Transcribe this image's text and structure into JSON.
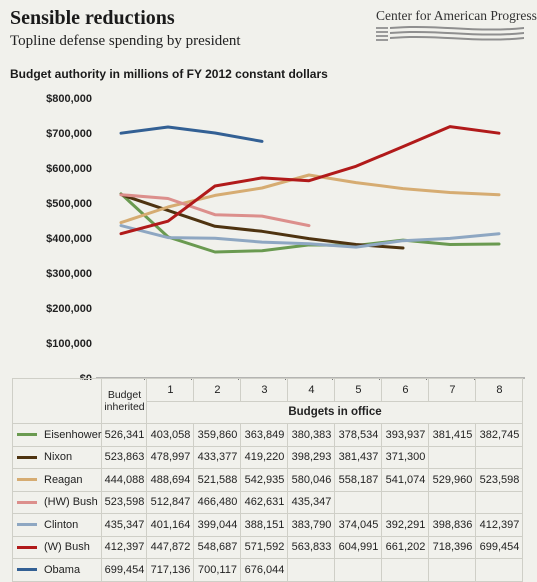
{
  "header": {
    "title": "Sensible reductions",
    "subtitle": "Topline defense spending by president",
    "logo_text": "Center for American Progress"
  },
  "chart_data": {
    "type": "line",
    "title": "Sensible reductions",
    "subtitle": "Topline defense spending by president",
    "ylabel": "Budget authority in millions of FY 2012 constant dollars",
    "xlabel": "Budgets in office",
    "categories": [
      "Budget inherited",
      "1",
      "2",
      "3",
      "4",
      "5",
      "6",
      "7",
      "8"
    ],
    "ylim": [
      0,
      800000
    ],
    "yticks": [
      "$0",
      "$100,000",
      "$200,000",
      "$300,000",
      "$400,000",
      "$500,000",
      "$600,000",
      "$700,000",
      "$800,000"
    ],
    "grid": false,
    "legend": "table",
    "series": [
      {
        "name": "Eisenhower",
        "color": "#6a9a50",
        "values": [
          526341,
          403058,
          359860,
          363849,
          380383,
          378534,
          393937,
          381415,
          382745
        ]
      },
      {
        "name": "Nixon",
        "color": "#4e3310",
        "values": [
          523863,
          478997,
          433377,
          419220,
          398293,
          381437,
          371300,
          null,
          null
        ]
      },
      {
        "name": "Reagan",
        "color": "#d6ac72",
        "values": [
          444088,
          488694,
          521588,
          542935,
          580046,
          558187,
          541074,
          529960,
          523598
        ]
      },
      {
        "name": "(HW) Bush",
        "color": "#dc8f8c",
        "values": [
          523598,
          512847,
          466480,
          462631,
          435347,
          null,
          null,
          null,
          null
        ]
      },
      {
        "name": "Clinton",
        "color": "#8ea7c2",
        "values": [
          435347,
          401164,
          399044,
          388151,
          383790,
          374045,
          392291,
          398836,
          412397
        ]
      },
      {
        "name": "(W) Bush",
        "color": "#b11a1a",
        "values": [
          412397,
          447872,
          548687,
          571592,
          563833,
          604991,
          661202,
          718396,
          699454
        ]
      },
      {
        "name": "Obama",
        "color": "#336094",
        "values": [
          699454,
          717136,
          700117,
          676044,
          null,
          null,
          null,
          null,
          null
        ]
      }
    ],
    "table_rows": [
      {
        "name": "Eisenhower",
        "cells": [
          "526,341",
          "403,058",
          "359,860",
          "363,849",
          "380,383",
          "378,534",
          "393,937",
          "381,415",
          "382,745"
        ]
      },
      {
        "name": "Nixon",
        "cells": [
          "523,863",
          "478,997",
          "433,377",
          "419,220",
          "398,293",
          "381,437",
          "371,300",
          "",
          ""
        ]
      },
      {
        "name": "Reagan",
        "cells": [
          "444,088",
          "488,694",
          "521,588",
          "542,935",
          "580,046",
          "558,187",
          "541,074",
          "529,960",
          "523,598"
        ]
      },
      {
        "name": "(HW) Bush",
        "cells": [
          "523,598",
          "512,847",
          "466,480",
          "462,631",
          "435,347",
          "",
          "",
          "",
          ""
        ]
      },
      {
        "name": "Clinton",
        "cells": [
          "435,347",
          "401,164",
          "399,044",
          "388,151",
          "383,790",
          "374,045",
          "392,291",
          "398,836",
          "412,397"
        ]
      },
      {
        "name": "(W) Bush",
        "cells": [
          "412,397",
          "447,872",
          "548,687",
          "571,592",
          "563,833",
          "604,991",
          "661,202",
          "718,396",
          "699,454"
        ]
      },
      {
        "name": "Obama",
        "cells": [
          "699,454",
          "717,136",
          "700,117",
          "676,044",
          "",
          "",
          "",
          "",
          ""
        ]
      }
    ],
    "inherited_label_line1": "Budget",
    "inherited_label_line2": "inherited"
  }
}
